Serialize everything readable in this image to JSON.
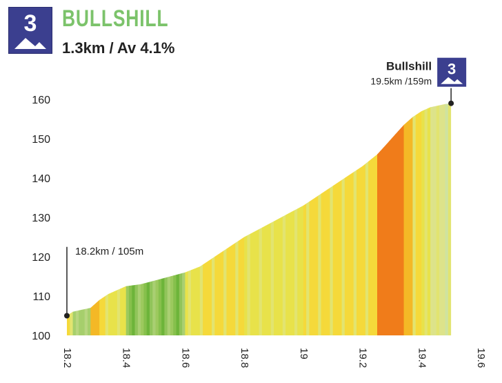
{
  "header": {
    "category": "3",
    "title": "BULLSHILL",
    "subtitle": "1.3km / Av 4.1%"
  },
  "summit": {
    "name": "Bullshill",
    "info": "19.5km /159m",
    "category": "3"
  },
  "start": {
    "info": "18.2km / 105m"
  },
  "colors": {
    "badge": "#3b3f8f",
    "title": "#7cc36b",
    "steep": "#f07c1a"
  },
  "chart_data": {
    "type": "area",
    "title": "BULLSHILL",
    "xlabel": "",
    "ylabel": "",
    "xlim": [
      18.2,
      19.6
    ],
    "ylim": [
      100,
      160
    ],
    "xticks": [
      "18.2",
      "18.4",
      "18.6",
      "18.8",
      "19",
      "19.2",
      "19.4",
      "19.6"
    ],
    "yticks": [
      "100",
      "110",
      "120",
      "130",
      "140",
      "150",
      "160"
    ],
    "grid": false,
    "series": [
      {
        "x": [
          18.2,
          18.22,
          18.25,
          18.28,
          18.31,
          18.34,
          18.37,
          18.4,
          18.45,
          18.5,
          18.55,
          18.6,
          18.65,
          18.7,
          18.75,
          18.8,
          18.85,
          18.9,
          18.95,
          19.0,
          19.05,
          19.1,
          19.15,
          19.2,
          19.25,
          19.28,
          19.31,
          19.34,
          19.37,
          19.4,
          19.43,
          19.46,
          19.48,
          19.5
        ],
        "y": [
          105,
          106,
          106.5,
          107,
          109,
          110.5,
          111.5,
          112.5,
          113,
          114,
          115,
          116,
          117.5,
          120,
          122.5,
          125,
          127,
          129,
          131,
          133,
          135.5,
          138,
          140.5,
          143,
          146,
          148.5,
          151,
          153.5,
          155.5,
          157,
          158,
          158.5,
          158.8,
          159
        ]
      }
    ]
  }
}
